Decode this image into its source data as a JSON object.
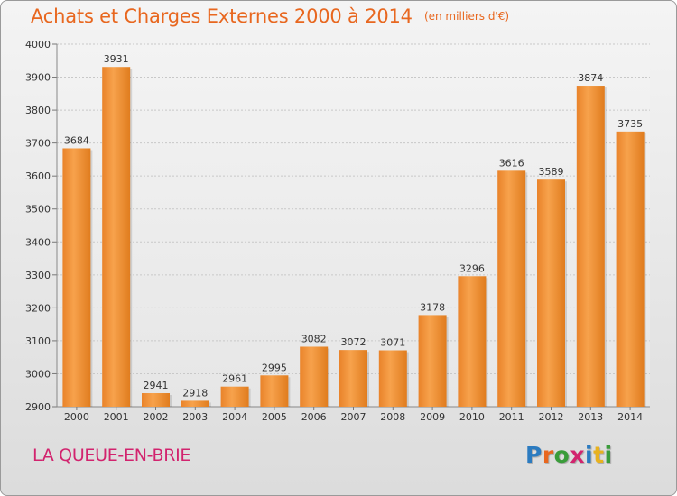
{
  "header": {
    "title": "Achats et Charges Externes 2000 à 2014",
    "subtitle": "(en milliers d'€)"
  },
  "footer": {
    "commune": "LA QUEUE-EN-BRIE",
    "brand": "Proxiti"
  },
  "colors": {
    "title": "#e8671f",
    "commune": "#d2236e",
    "bar_light": "#f7a24c",
    "bar_dark": "#e07c1e"
  },
  "chart_data": {
    "type": "bar",
    "title": "Achats et Charges Externes 2000 à 2014",
    "subtitle": "(en milliers d'€)",
    "categories": [
      "2000",
      "2001",
      "2002",
      "2003",
      "2004",
      "2005",
      "2006",
      "2007",
      "2008",
      "2009",
      "2010",
      "2011",
      "2012",
      "2013",
      "2014"
    ],
    "values": [
      3684,
      3931,
      2941,
      2918,
      2961,
      2995,
      3082,
      3072,
      3071,
      3178,
      3296,
      3616,
      3589,
      3874,
      3735
    ],
    "ylim": [
      2900,
      4000
    ],
    "yticks": [
      2900,
      3000,
      3100,
      3200,
      3300,
      3400,
      3500,
      3600,
      3700,
      3800,
      3900,
      4000
    ],
    "grid": true,
    "data_labels": true
  }
}
